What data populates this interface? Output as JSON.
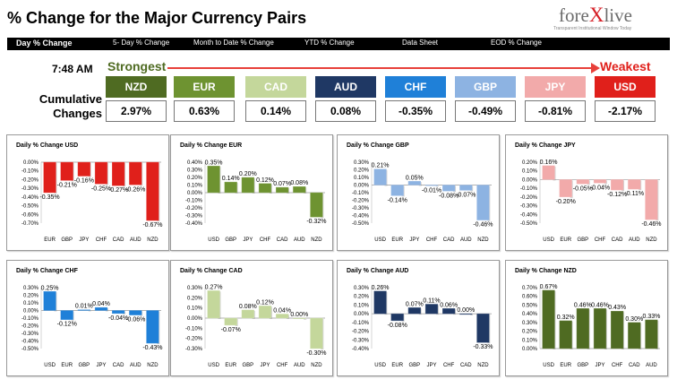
{
  "header": {
    "title": "% Change for the Major Currency Pairs"
  },
  "logo": {
    "text_a": "fore",
    "text_x": "X",
    "text_b": "live",
    "tagline": "Transparent Institutional Window Today"
  },
  "nav": [
    "Day % Change",
    "5- Day % Change",
    "Month to Date % Change",
    "YTD % Change",
    "Data Sheet",
    "EOD % Change"
  ],
  "time": "7:48 AM",
  "strongest_label": "Strongest",
  "weakest_label": "Weakest",
  "cumulative_label_1": "Cumulative",
  "cumulative_label_2": "Changes",
  "currencies": [
    {
      "name": "NZD",
      "value": "2.97%",
      "color": "#4f6b22"
    },
    {
      "name": "EUR",
      "value": "0.63%",
      "color": "#6e9331"
    },
    {
      "name": "CAD",
      "value": "0.14%",
      "color": "#c4d79b"
    },
    {
      "name": "AUD",
      "value": "0.08%",
      "color": "#1f3864"
    },
    {
      "name": "CHF",
      "value": "-0.35%",
      "color": "#1f80d8"
    },
    {
      "name": "GBP",
      "value": "-0.49%",
      "color": "#8db3e2"
    },
    {
      "name": "JPY",
      "value": "-0.81%",
      "color": "#f2aaaa"
    },
    {
      "name": "USD",
      "value": "-2.17%",
      "color": "#e0201b"
    }
  ],
  "chart_data": [
    {
      "type": "bar",
      "title": "Daily % Change USD",
      "categories": [
        "EUR",
        "GBP",
        "JPY",
        "CHF",
        "CAD",
        "AUD",
        "NZD"
      ],
      "values": [
        -0.35,
        -0.21,
        -0.16,
        -0.25,
        -0.27,
        -0.26,
        -0.67
      ],
      "labels": [
        "-0.35%",
        "-0.21%",
        "-0.16%",
        "-0.25%",
        "-0.27%",
        "-0.26%",
        "-0.67%"
      ],
      "ylim": [
        -0.7,
        0.0
      ],
      "ticks": [
        "0.00%",
        "-0.10%",
        "-0.20%",
        "-0.30%",
        "-0.40%",
        "-0.50%",
        "-0.60%",
        "-0.70%"
      ],
      "color": "#e0201b"
    },
    {
      "type": "bar",
      "title": "Daily % Change EUR",
      "categories": [
        "USD",
        "GBP",
        "JPY",
        "CHF",
        "CAD",
        "AUD",
        "NZD"
      ],
      "values": [
        0.35,
        0.14,
        0.2,
        0.12,
        0.07,
        0.08,
        -0.32
      ],
      "labels": [
        "0.35%",
        "0.14%",
        "0.20%",
        "0.12%",
        "0.07%",
        "0.08%",
        "-0.32%"
      ],
      "ylim": [
        -0.4,
        0.4
      ],
      "ticks": [
        "0.40%",
        "0.30%",
        "0.20%",
        "0.10%",
        "0.00%",
        "-0.10%",
        "-0.20%",
        "-0.30%",
        "-0.40%"
      ],
      "color": "#6e9331"
    },
    {
      "type": "bar",
      "title": "Daily % Change GBP",
      "categories": [
        "USD",
        "EUR",
        "JPY",
        "CHF",
        "CAD",
        "AUD",
        "NZD"
      ],
      "values": [
        0.21,
        -0.14,
        0.05,
        -0.01,
        -0.08,
        -0.07,
        -0.46
      ],
      "labels": [
        "0.21%",
        "-0.14%",
        "0.05%",
        "-0.01%",
        "-0.08%",
        "-0.07%",
        "-0.46%"
      ],
      "ylim": [
        -0.5,
        0.3
      ],
      "ticks": [
        "0.30%",
        "0.20%",
        "0.10%",
        "0.00%",
        "-0.10%",
        "-0.20%",
        "-0.30%",
        "-0.40%",
        "-0.50%"
      ],
      "color": "#8db3e2"
    },
    {
      "type": "bar",
      "title": "Daily % Change JPY",
      "categories": [
        "USD",
        "EUR",
        "GBP",
        "CHF",
        "CAD",
        "AUD",
        "NZD"
      ],
      "values": [
        0.16,
        -0.2,
        -0.05,
        -0.04,
        -0.12,
        -0.11,
        -0.46
      ],
      "labels": [
        "0.16%",
        "-0.20%",
        "-0.05%",
        "-0.04%",
        "-0.12%",
        "-0.11%",
        "-0.46%"
      ],
      "ylim": [
        -0.5,
        0.2
      ],
      "ticks": [
        "0.20%",
        "0.10%",
        "0.00%",
        "-0.10%",
        "-0.20%",
        "-0.30%",
        "-0.40%",
        "-0.50%"
      ],
      "color": "#f2aaaa"
    },
    {
      "type": "bar",
      "title": "Daily % Change CHF",
      "categories": [
        "USD",
        "EUR",
        "GBP",
        "JPY",
        "CAD",
        "AUD",
        "NZD"
      ],
      "values": [
        0.25,
        -0.12,
        0.01,
        0.04,
        -0.04,
        -0.06,
        -0.43
      ],
      "labels": [
        "0.25%",
        "-0.12%",
        "0.01%",
        "0.04%",
        "-0.04%",
        "-0.06%",
        "-0.43%"
      ],
      "ylim": [
        -0.5,
        0.3
      ],
      "ticks": [
        "0.30%",
        "0.20%",
        "0.10%",
        "0.00%",
        "-0.10%",
        "-0.20%",
        "-0.30%",
        "-0.40%",
        "-0.50%"
      ],
      "color": "#1f80d8"
    },
    {
      "type": "bar",
      "title": "Daily % Change CAD",
      "categories": [
        "USD",
        "EUR",
        "GBP",
        "JPY",
        "CHF",
        "AUD",
        "NZD"
      ],
      "values": [
        0.27,
        -0.07,
        0.08,
        0.12,
        0.04,
        0.0,
        -0.3
      ],
      "labels": [
        "0.27%",
        "-0.07%",
        "0.08%",
        "0.12%",
        "0.04%",
        "0.00%",
        "-0.30%"
      ],
      "ylim": [
        -0.3,
        0.3
      ],
      "ticks": [
        "0.30%",
        "0.20%",
        "0.10%",
        "0.00%",
        "-0.10%",
        "-0.20%",
        "-0.30%"
      ],
      "color": "#c4d79b"
    },
    {
      "type": "bar",
      "title": "Daily % Change AUD",
      "categories": [
        "USD",
        "EUR",
        "GBP",
        "JPY",
        "CHF",
        "CAD",
        "NZD"
      ],
      "values": [
        0.26,
        -0.08,
        0.07,
        0.11,
        0.06,
        0.0,
        -0.33
      ],
      "labels": [
        "0.26%",
        "-0.08%",
        "0.07%",
        "0.11%",
        "0.06%",
        "0.00%",
        "-0.33%"
      ],
      "ylim": [
        -0.4,
        0.3
      ],
      "ticks": [
        "0.30%",
        "0.20%",
        "0.10%",
        "0.00%",
        "-0.10%",
        "-0.20%",
        "-0.30%",
        "-0.40%"
      ],
      "color": "#1f3864"
    },
    {
      "type": "bar",
      "title": "Daily % Change NZD",
      "categories": [
        "USD",
        "EUR",
        "GBP",
        "JPY",
        "CHF",
        "CAD",
        "AUD"
      ],
      "values": [
        0.67,
        0.32,
        0.46,
        0.46,
        0.43,
        0.3,
        0.33
      ],
      "labels": [
        "0.67%",
        "0.32%",
        "0.46%",
        "0.46%",
        "0.43%",
        "0.30%",
        "0.33%"
      ],
      "ylim": [
        0.0,
        0.7
      ],
      "ticks": [
        "0.70%",
        "0.60%",
        "0.50%",
        "0.40%",
        "0.30%",
        "0.20%",
        "0.10%",
        "0.00%"
      ],
      "color": "#4f6b22"
    }
  ]
}
